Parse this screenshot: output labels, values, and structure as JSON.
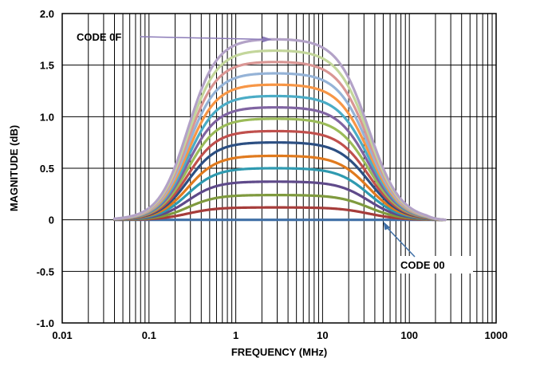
{
  "chart_data": {
    "type": "line",
    "title": "",
    "xlabel": "FREQUENCY (MHz)",
    "ylabel": "MAGNITUDE (dB)",
    "x_scale": "log",
    "xlim": [
      0.01,
      1000
    ],
    "ylim": [
      -1.0,
      2.0
    ],
    "x_ticks": [
      "0.01",
      "0.1",
      "1",
      "10",
      "100",
      "1000"
    ],
    "y_ticks": [
      "2.0",
      "1.5",
      "1.0",
      "0.5",
      "0",
      "-0.5",
      "-1.0"
    ],
    "grid": true,
    "legend": "none",
    "x_start": 0.04,
    "x_end": 260,
    "series": [
      {
        "color": "#3f6fa6",
        "peak_db": 0.0
      },
      {
        "color": "#a63c3a",
        "peak_db": 0.12
      },
      {
        "color": "#7f9a3e",
        "peak_db": 0.24
      },
      {
        "color": "#5f4a8a",
        "peak_db": 0.37
      },
      {
        "color": "#2f9ab0",
        "peak_db": 0.5
      },
      {
        "color": "#e07a1e",
        "peak_db": 0.62
      },
      {
        "color": "#2c4f82",
        "peak_db": 0.75
      },
      {
        "color": "#c0504d",
        "peak_db": 0.86
      },
      {
        "color": "#9bbb59",
        "peak_db": 0.98
      },
      {
        "color": "#8064a2",
        "peak_db": 1.09
      },
      {
        "color": "#4bacc6",
        "peak_db": 1.2
      },
      {
        "color": "#f79646",
        "peak_db": 1.31
      },
      {
        "color": "#95b3d7",
        "peak_db": 1.42
      },
      {
        "color": "#d99694",
        "peak_db": 1.53
      },
      {
        "color": "#c3d69b",
        "peak_db": 1.64
      },
      {
        "color": "#b3a2c7",
        "peak_db": 1.75
      }
    ],
    "annotations": [
      {
        "text": "CODE 0F",
        "x": 2.6,
        "y": 1.75
      },
      {
        "text": "CODE 00",
        "x": 50,
        "y": 0.0
      }
    ]
  }
}
